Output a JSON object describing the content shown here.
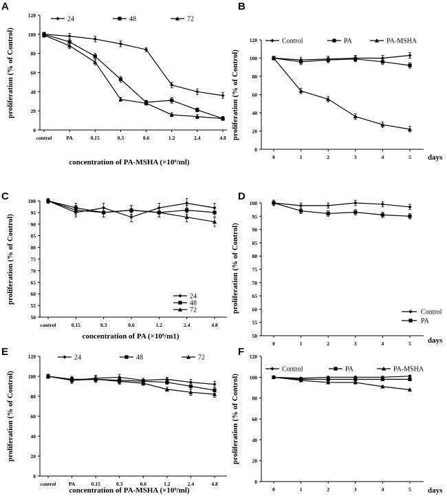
{
  "chart_data": [
    {
      "panel": "A",
      "type": "line",
      "title": "",
      "xlabel": "concentration of PA-MSHA (×10⁹/ml)",
      "ylabel": "proliferation (% of Control)",
      "categories": [
        "control",
        "PA",
        "0.15",
        "0.3",
        "0.6",
        "1.2",
        "2.4",
        "4.8"
      ],
      "ylim": [
        0,
        120
      ],
      "yticks": [
        0,
        20,
        40,
        60,
        80,
        100,
        120
      ],
      "legend_position": "top",
      "series": [
        {
          "name": "24",
          "marker": "diamond",
          "values": [
            100,
            98,
            95,
            90,
            84,
            47,
            40,
            36
          ],
          "errors": [
            2,
            3,
            3,
            3,
            2,
            3,
            3,
            3
          ]
        },
        {
          "name": "48",
          "marker": "square",
          "values": [
            100,
            92,
            77,
            53,
            29,
            31,
            21,
            12
          ],
          "errors": [
            2,
            3,
            3,
            3,
            2,
            3,
            2,
            2
          ]
        },
        {
          "name": "72",
          "marker": "triangle",
          "values": [
            99,
            88,
            71,
            32,
            28,
            16,
            14,
            12
          ],
          "errors": [
            2,
            3,
            3,
            2,
            2,
            2,
            2,
            2
          ]
        }
      ]
    },
    {
      "panel": "B",
      "type": "line",
      "title": "",
      "xlabel": "days",
      "ylabel": "proliferation (% of Control)",
      "x": [
        0,
        1,
        2,
        3,
        4,
        5
      ],
      "ylim": [
        0,
        120
      ],
      "yticks": [
        0,
        20,
        40,
        60,
        80,
        100,
        120
      ],
      "legend_position": "top",
      "series": [
        {
          "name": "Control",
          "marker": "diamond",
          "values": [
            100,
            98,
            99,
            100,
            100,
            103
          ],
          "errors": [
            2,
            3,
            3,
            3,
            3,
            3
          ]
        },
        {
          "name": "PA",
          "marker": "square",
          "values": [
            100,
            96,
            98,
            99,
            96,
            92
          ],
          "errors": [
            2,
            3,
            3,
            3,
            3,
            3
          ]
        },
        {
          "name": "PA-MSHA",
          "marker": "triangle",
          "values": [
            100,
            64,
            55,
            36,
            27,
            22
          ],
          "errors": [
            2,
            3,
            3,
            3,
            3,
            3
          ]
        }
      ]
    },
    {
      "panel": "C",
      "type": "line",
      "title": "",
      "xlabel": "concentration of PA (×10⁹/m1)",
      "ylabel": "proliferation (% of Control)",
      "categories": [
        "control",
        "0.15",
        "0.3",
        "0.6",
        "1.2",
        "2.4",
        "4.8"
      ],
      "ylim": [
        50,
        100
      ],
      "yticks": [
        50,
        55,
        60,
        65,
        70,
        75,
        80,
        85,
        90,
        95,
        100
      ],
      "legend_position": "bottom-right",
      "series": [
        {
          "name": "24",
          "marker": "diamond",
          "values": [
            100,
            95,
            97,
            93,
            97,
            99,
            97
          ],
          "errors": [
            1,
            2,
            2,
            2,
            2,
            2,
            2
          ]
        },
        {
          "name": "48",
          "marker": "square",
          "values": [
            100,
            97,
            95,
            96,
            95,
            96,
            95
          ],
          "errors": [
            1,
            2,
            2,
            2,
            2,
            2,
            2
          ]
        },
        {
          "name": "72",
          "marker": "triangle",
          "values": [
            100,
            96,
            95,
            96,
            95,
            93,
            91
          ],
          "errors": [
            1,
            2,
            2,
            2,
            2,
            2,
            2
          ]
        }
      ]
    },
    {
      "panel": "D",
      "type": "line",
      "title": "",
      "xlabel": "days",
      "ylabel": "proliferation (% of Control)",
      "x": [
        0,
        1,
        2,
        3,
        4,
        5
      ],
      "ylim": [
        50,
        100
      ],
      "yticks": [
        50,
        55,
        60,
        65,
        70,
        75,
        80,
        85,
        90,
        95,
        100
      ],
      "legend_position": "bottom-right",
      "series": [
        {
          "name": "Control",
          "marker": "diamond",
          "values": [
            100,
            99,
            99,
            100,
            99.5,
            98.5
          ],
          "errors": [
            1,
            1,
            1,
            1,
            1,
            1
          ]
        },
        {
          "name": "PA",
          "marker": "square",
          "values": [
            100,
            97,
            96,
            96.5,
            95.5,
            95
          ],
          "errors": [
            1,
            1,
            1,
            1,
            1,
            1
          ]
        }
      ]
    },
    {
      "panel": "E",
      "type": "line",
      "title": "",
      "xlabel": "concentration of PA-MSHA (×10⁹/ml)",
      "ylabel": "proliferation (% of Control)",
      "categories": [
        "control",
        "PA",
        "0.15",
        "0.3",
        "0.6",
        "1.2",
        "2.4",
        "4.8"
      ],
      "ylim": [
        0,
        120
      ],
      "yticks": [
        0,
        20,
        40,
        60,
        80,
        100,
        120
      ],
      "legend_position": "top",
      "series": [
        {
          "name": "24",
          "marker": "diamond",
          "values": [
            100,
            96,
            98,
            99,
            96,
            97,
            94,
            92
          ],
          "errors": [
            2,
            3,
            3,
            3,
            2,
            2,
            3,
            3
          ]
        },
        {
          "name": "48",
          "marker": "square",
          "values": [
            100,
            97,
            97,
            96,
            95,
            94,
            90,
            86
          ],
          "errors": [
            2,
            3,
            3,
            3,
            2,
            2,
            3,
            3
          ]
        },
        {
          "name": "72",
          "marker": "triangle",
          "values": [
            100,
            96,
            97,
            95,
            93,
            87,
            84,
            82
          ],
          "errors": [
            2,
            3,
            3,
            3,
            2,
            2,
            3,
            3
          ]
        }
      ]
    },
    {
      "panel": "F",
      "type": "line",
      "title": "",
      "xlabel": "days",
      "ylabel": "proliferation (% of Control)",
      "x": [
        0,
        1,
        2,
        3,
        4,
        5
      ],
      "ylim": [
        0,
        120
      ],
      "yticks": [
        0,
        20,
        40,
        60,
        80,
        100,
        120
      ],
      "legend_position": "top",
      "series": [
        {
          "name": "Control",
          "marker": "diamond",
          "values": [
            100,
            99,
            100,
            100,
            100,
            101
          ],
          "errors": [
            1,
            1,
            1,
            1,
            1,
            1
          ]
        },
        {
          "name": "PA",
          "marker": "square",
          "values": [
            100,
            98,
            98,
            98,
            98,
            98
          ],
          "errors": [
            1,
            1,
            1,
            1,
            1,
            1
          ]
        },
        {
          "name": "PA-MSHA",
          "marker": "triangle",
          "values": [
            100,
            97,
            95,
            95,
            91,
            88
          ],
          "errors": [
            1,
            1,
            1,
            1,
            1,
            1
          ]
        }
      ]
    }
  ]
}
